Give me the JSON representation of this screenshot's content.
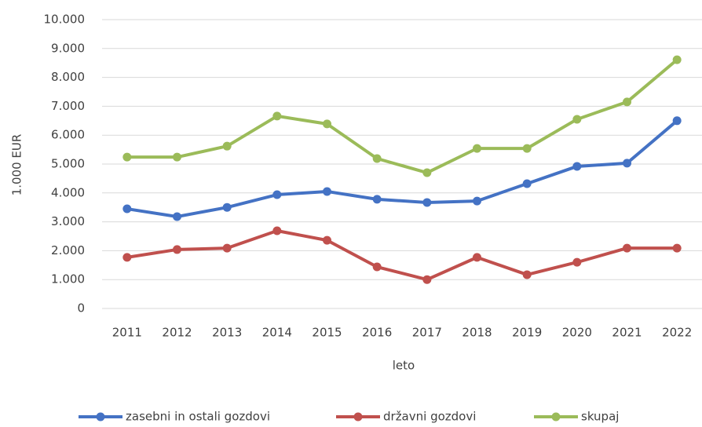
{
  "chart_data": {
    "type": "line",
    "y_label": "1.000 EUR",
    "x_label": "leto",
    "categories": [
      "2011",
      "2012",
      "2013",
      "2014",
      "2015",
      "2016",
      "2017",
      "2018",
      "2019",
      "2020",
      "2021",
      "2022"
    ],
    "series": [
      {
        "name": "zasebni in ostali gozdovi",
        "color": "#4472c4",
        "values": [
          3450,
          3180,
          3500,
          3940,
          4050,
          3780,
          3670,
          3720,
          4320,
          4920,
          5030,
          6500
        ]
      },
      {
        "name": "državni gozdovi",
        "color": "#c0504d",
        "values": [
          1770,
          2040,
          2090,
          2690,
          2360,
          1440,
          1000,
          1770,
          1170,
          1600,
          2090,
          2090
        ]
      },
      {
        "name": "skupaj",
        "color": "#9bbb59",
        "values": [
          5240,
          5240,
          5620,
          6660,
          6390,
          5190,
          4700,
          5540,
          5540,
          6550,
          7150,
          8610
        ]
      }
    ],
    "ylim": [
      0,
      10000
    ],
    "yticks": [
      0,
      {
        "value": 1000,
        "label": "1.000"
      },
      {
        "value": 2000,
        "label": "2.000"
      },
      {
        "value": 3000,
        "label": "3.000"
      },
      {
        "value": 4000,
        "label": "4.000"
      },
      {
        "value": 5000,
        "label": "5.000"
      },
      {
        "value": 6000,
        "label": "6.000"
      },
      {
        "value": 7000,
        "label": "7.000"
      },
      {
        "value": 8000,
        "label": "8.000"
      },
      {
        "value": 9000,
        "label": "9.000"
      },
      {
        "value": 10000,
        "label": "10.000"
      }
    ],
    "grid": true,
    "legend": "bottom"
  }
}
